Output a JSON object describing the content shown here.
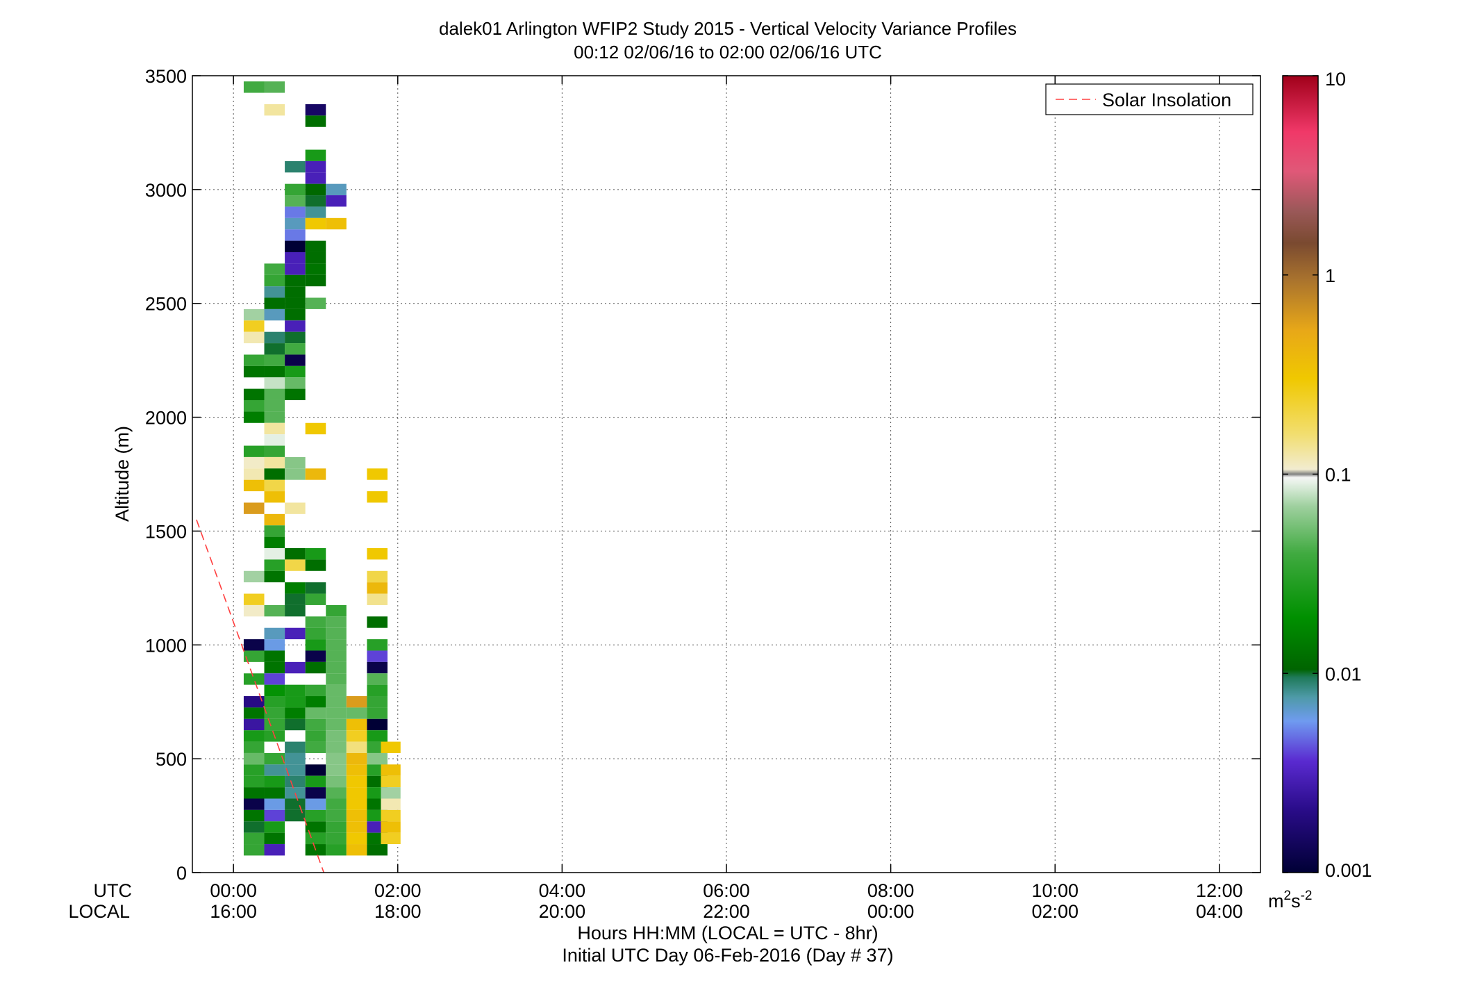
{
  "chart_data": {
    "type": "heatmap",
    "title": "dalek01 Arlington WFIP2 Study 2015 - Vertical Velocity Variance Profiles",
    "subtitle": "00:12 02/06/16 to 02:00 02/06/16  UTC",
    "ylabel": "Altitude (m)",
    "xlabel": "Hours HH:MM  (LOCAL = UTC - 8hr)",
    "xlabel2": "Initial UTC Day 06-Feb-2016 (Day # 37)",
    "ylim": [
      0,
      3500
    ],
    "xlim_hours": [
      -0.5,
      12.5
    ],
    "yticks": [
      0,
      500,
      1000,
      1500,
      2000,
      2500,
      3000,
      3500
    ],
    "yticklabels": [
      "0",
      "500",
      "1000",
      "1500",
      "2000",
      "2500",
      "3000",
      "3500"
    ],
    "xtick_hours": [
      0,
      2,
      4,
      6,
      8,
      10,
      12
    ],
    "xtick_utc_labels": [
      "00:00",
      "02:00",
      "04:00",
      "06:00",
      "08:00",
      "10:00",
      "12:00"
    ],
    "xtick_local_labels": [
      "16:00",
      "18:00",
      "20:00",
      "22:00",
      "00:00",
      "02:00",
      "04:00"
    ],
    "row_label_utc": "UTC",
    "row_label_local": "LOCAL",
    "grid": true,
    "legend": {
      "position": "top-right",
      "entries": [
        "Solar Insolation"
      ]
    },
    "colorbar": {
      "scale": "log",
      "min": 0.001,
      "max": 10,
      "ticks": [
        0.001,
        0.01,
        0.1,
        1,
        10
      ],
      "ticklabels": [
        "0.001",
        "0.01",
        "0.1",
        "1",
        "10"
      ],
      "unit_main": "m",
      "unit_sup1": "2",
      "unit_mid": "s",
      "unit_sup2": "-2"
    },
    "series": [
      {
        "name": "Solar Insolation",
        "type": "line",
        "style": "dashed",
        "color": "#ff4040",
        "points": [
          [
            -0.45,
            1550
          ],
          [
            1.1,
            0
          ]
        ]
      }
    ],
    "cell_hours": 0.25,
    "cell_height_m": 50,
    "columns": [
      {
        "t": 0.25,
        "cells": [
          [
            3450,
            0.04
          ],
          [
            2450,
            0.07
          ],
          [
            2400,
            0.25
          ],
          [
            2350,
            0.12
          ],
          [
            2250,
            0.035
          ],
          [
            2200,
            0.013
          ],
          [
            2100,
            0.013
          ],
          [
            2050,
            0.035
          ],
          [
            2000,
            0.015
          ],
          [
            1850,
            0.03
          ],
          [
            1800,
            0.11
          ],
          [
            1750,
            0.12
          ],
          [
            1700,
            0.35
          ],
          [
            1600,
            0.6
          ],
          [
            1300,
            0.07
          ],
          [
            1200,
            0.25
          ],
          [
            1150,
            0.11
          ],
          [
            1000,
            0.0012
          ],
          [
            950,
            0.035
          ],
          [
            850,
            0.03
          ],
          [
            750,
            0.002
          ],
          [
            700,
            0.013
          ],
          [
            650,
            0.0025
          ],
          [
            600,
            0.025
          ],
          [
            550,
            0.035
          ],
          [
            500,
            0.05
          ],
          [
            450,
            0.03
          ],
          [
            400,
            0.03
          ],
          [
            350,
            0.013
          ],
          [
            300,
            0.0012
          ],
          [
            250,
            0.013
          ],
          [
            200,
            0.01
          ],
          [
            150,
            0.035
          ],
          [
            100,
            0.035
          ]
        ]
      },
      {
        "t": 0.5,
        "cells": [
          [
            3450,
            0.045
          ],
          [
            3350,
            0.13
          ],
          [
            2650,
            0.04
          ],
          [
            2600,
            0.035
          ],
          [
            2550,
            0.008
          ],
          [
            2500,
            0.012
          ],
          [
            2450,
            0.007
          ],
          [
            2350,
            0.009
          ],
          [
            2300,
            0.01
          ],
          [
            2250,
            0.04
          ],
          [
            2200,
            0.013
          ],
          [
            2150,
            0.08
          ],
          [
            2100,
            0.045
          ],
          [
            2050,
            0.045
          ],
          [
            2000,
            0.045
          ],
          [
            1950,
            0.13
          ],
          [
            1900,
            0.09
          ],
          [
            1850,
            0.035
          ],
          [
            1800,
            0.13
          ],
          [
            1750,
            0.012
          ],
          [
            1700,
            0.2
          ],
          [
            1650,
            0.35
          ],
          [
            1550,
            0.4
          ],
          [
            1500,
            0.035
          ],
          [
            1450,
            0.015
          ],
          [
            1400,
            0.09
          ],
          [
            1350,
            0.03
          ],
          [
            1300,
            0.013
          ],
          [
            1150,
            0.045
          ],
          [
            1050,
            0.007
          ],
          [
            1000,
            0.006
          ],
          [
            950,
            0.013
          ],
          [
            900,
            0.013
          ],
          [
            850,
            0.004
          ],
          [
            800,
            0.02
          ],
          [
            750,
            0.03
          ],
          [
            700,
            0.035
          ],
          [
            650,
            0.035
          ],
          [
            600,
            0.03
          ],
          [
            500,
            0.035
          ],
          [
            450,
            0.008
          ],
          [
            400,
            0.025
          ],
          [
            350,
            0.013
          ],
          [
            300,
            0.006
          ],
          [
            250,
            0.004
          ],
          [
            200,
            0.025
          ],
          [
            150,
            0.013
          ],
          [
            100,
            0.003
          ]
        ]
      },
      {
        "t": 0.75,
        "cells": [
          [
            3100,
            0.009
          ],
          [
            3000,
            0.035
          ],
          [
            2950,
            0.045
          ],
          [
            2900,
            0.005
          ],
          [
            2850,
            0.007
          ],
          [
            2800,
            0.005
          ],
          [
            2750,
            0.001
          ],
          [
            2700,
            0.003
          ],
          [
            2650,
            0.003
          ],
          [
            2600,
            0.012
          ],
          [
            2550,
            0.012
          ],
          [
            2500,
            0.012
          ],
          [
            2450,
            0.012
          ],
          [
            2400,
            0.003
          ],
          [
            2350,
            0.01
          ],
          [
            2300,
            0.04
          ],
          [
            2250,
            0.0012
          ],
          [
            2200,
            0.025
          ],
          [
            2150,
            0.05
          ],
          [
            2100,
            0.013
          ],
          [
            1800,
            0.06
          ],
          [
            1750,
            0.06
          ],
          [
            1600,
            0.13
          ],
          [
            1400,
            0.012
          ],
          [
            1350,
            0.2
          ],
          [
            1250,
            0.015
          ],
          [
            1200,
            0.01
          ],
          [
            1150,
            0.01
          ],
          [
            1050,
            0.003
          ],
          [
            900,
            0.003
          ],
          [
            800,
            0.025
          ],
          [
            750,
            0.025
          ],
          [
            700,
            0.015
          ],
          [
            650,
            0.01
          ],
          [
            550,
            0.009
          ],
          [
            500,
            0.008
          ],
          [
            450,
            0.008
          ],
          [
            400,
            0.009
          ],
          [
            350,
            0.008
          ],
          [
            300,
            0.01
          ],
          [
            250,
            0.01
          ]
        ]
      },
      {
        "t": 1.0,
        "cells": [
          [
            3350,
            0.0015
          ],
          [
            3300,
            0.012
          ],
          [
            3150,
            0.025
          ],
          [
            3100,
            0.003
          ],
          [
            3050,
            0.003
          ],
          [
            3000,
            0.011
          ],
          [
            2950,
            0.01
          ],
          [
            2900,
            0.008
          ],
          [
            2850,
            0.3
          ],
          [
            2750,
            0.012
          ],
          [
            2700,
            0.012
          ],
          [
            2650,
            0.013
          ],
          [
            2600,
            0.012
          ],
          [
            2500,
            0.045
          ],
          [
            1950,
            0.3
          ],
          [
            1750,
            0.4
          ],
          [
            1400,
            0.025
          ],
          [
            1350,
            0.012
          ],
          [
            1250,
            0.01
          ],
          [
            1200,
            0.035
          ],
          [
            1100,
            0.04
          ],
          [
            1050,
            0.035
          ],
          [
            1000,
            0.025
          ],
          [
            950,
            0.0012
          ],
          [
            900,
            0.012
          ],
          [
            800,
            0.035
          ],
          [
            750,
            0.015
          ],
          [
            700,
            0.05
          ],
          [
            650,
            0.04
          ],
          [
            600,
            0.035
          ],
          [
            550,
            0.04
          ],
          [
            450,
            0.001
          ],
          [
            400,
            0.025
          ],
          [
            350,
            0.0012
          ],
          [
            300,
            0.006
          ],
          [
            250,
            0.03
          ],
          [
            200,
            0.013
          ],
          [
            150,
            0.03
          ],
          [
            100,
            0.013
          ]
        ]
      },
      {
        "t": 1.25,
        "cells": [
          [
            3000,
            0.007
          ],
          [
            2950,
            0.003
          ],
          [
            2850,
            0.35
          ],
          [
            1150,
            0.035
          ],
          [
            1100,
            0.045
          ],
          [
            1050,
            0.045
          ],
          [
            1000,
            0.045
          ],
          [
            950,
            0.045
          ],
          [
            900,
            0.045
          ],
          [
            850,
            0.045
          ],
          [
            800,
            0.05
          ],
          [
            750,
            0.05
          ],
          [
            700,
            0.05
          ],
          [
            650,
            0.05
          ],
          [
            600,
            0.055
          ],
          [
            550,
            0.055
          ],
          [
            500,
            0.06
          ],
          [
            450,
            0.06
          ],
          [
            400,
            0.055
          ],
          [
            350,
            0.045
          ],
          [
            300,
            0.04
          ],
          [
            250,
            0.04
          ],
          [
            200,
            0.035
          ],
          [
            150,
            0.035
          ],
          [
            100,
            0.03
          ]
        ]
      },
      {
        "t": 1.5,
        "cells": [
          [
            750,
            0.6
          ],
          [
            700,
            0.05
          ],
          [
            650,
            0.35
          ],
          [
            600,
            0.25
          ],
          [
            550,
            0.15
          ],
          [
            500,
            0.4
          ],
          [
            450,
            0.35
          ],
          [
            400,
            0.3
          ],
          [
            350,
            0.3
          ],
          [
            300,
            0.3
          ],
          [
            250,
            0.35
          ],
          [
            200,
            0.35
          ],
          [
            150,
            0.3
          ],
          [
            100,
            0.35
          ]
        ]
      },
      {
        "t": 1.75,
        "cells": [
          [
            1750,
            0.3
          ],
          [
            1650,
            0.3
          ],
          [
            1400,
            0.3
          ],
          [
            1300,
            0.2
          ],
          [
            1250,
            0.4
          ],
          [
            1200,
            0.14
          ],
          [
            1100,
            0.012
          ],
          [
            1000,
            0.03
          ],
          [
            950,
            0.004
          ],
          [
            900,
            0.0012
          ],
          [
            850,
            0.045
          ],
          [
            800,
            0.03
          ],
          [
            750,
            0.035
          ],
          [
            700,
            0.035
          ],
          [
            650,
            0.001
          ],
          [
            600,
            0.025
          ],
          [
            550,
            0.035
          ],
          [
            500,
            0.06
          ],
          [
            450,
            0.03
          ],
          [
            400,
            0.012
          ],
          [
            350,
            0.025
          ],
          [
            300,
            0.013
          ],
          [
            250,
            0.025
          ],
          [
            200,
            0.003
          ],
          [
            150,
            0.013
          ],
          [
            100,
            0.012
          ]
        ]
      },
      {
        "t": 1.92,
        "cells": [
          [
            550,
            0.3
          ],
          [
            450,
            0.35
          ],
          [
            400,
            0.25
          ],
          [
            350,
            0.07
          ],
          [
            300,
            0.12
          ],
          [
            250,
            0.25
          ],
          [
            200,
            0.35
          ],
          [
            150,
            0.25
          ]
        ]
      }
    ]
  }
}
